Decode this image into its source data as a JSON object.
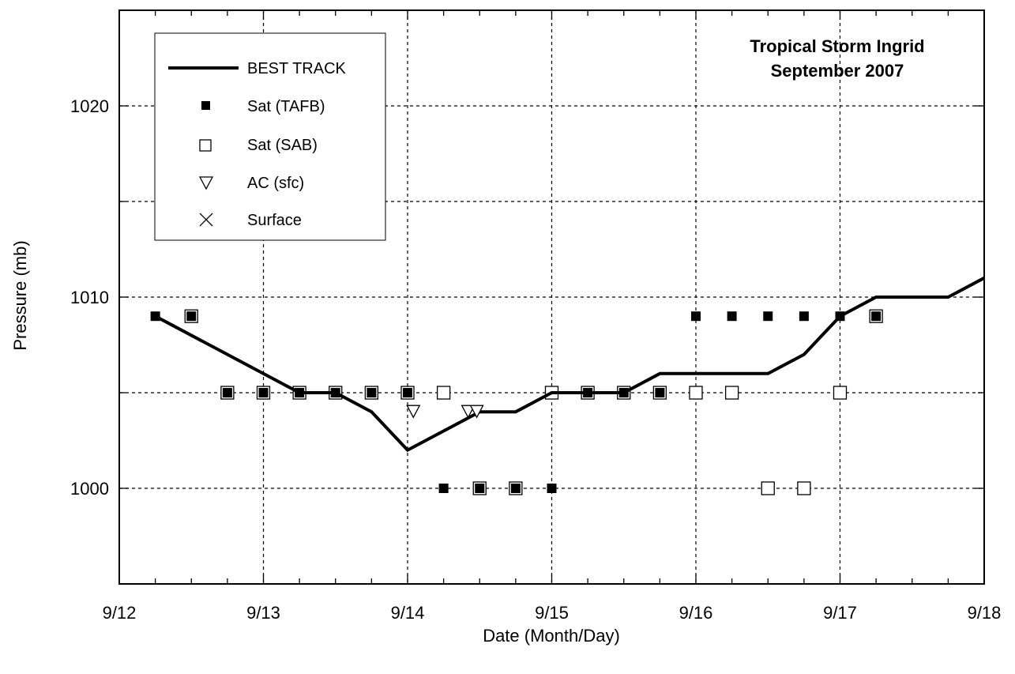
{
  "chart_data": {
    "type": "scatter",
    "title": "Tropical Storm Ingrid",
    "subtitle": "September 2007",
    "xlabel": "Date (Month/Day)",
    "ylabel": "Pressure (mb)",
    "x_ticks": [
      "9/12",
      "9/13",
      "9/14",
      "9/15",
      "9/16",
      "9/17",
      "9/18"
    ],
    "y_ticks": [
      1000,
      1010,
      1020
    ],
    "xlim": [
      12,
      18
    ],
    "ylim": [
      995,
      1025
    ],
    "grid": true,
    "legend_position": "top-left",
    "series": [
      {
        "name": "BEST TRACK",
        "marker": "line",
        "color": "#000000",
        "points": [
          [
            12.25,
            1009
          ],
          [
            13.25,
            1005
          ],
          [
            13.5,
            1005
          ],
          [
            13.75,
            1004
          ],
          [
            14.0,
            1002
          ],
          [
            14.5,
            1004
          ],
          [
            14.75,
            1004
          ],
          [
            15.0,
            1005
          ],
          [
            15.25,
            1005
          ],
          [
            15.5,
            1005
          ],
          [
            15.75,
            1006
          ],
          [
            16.0,
            1006
          ],
          [
            16.25,
            1006
          ],
          [
            16.5,
            1006
          ],
          [
            16.75,
            1007
          ],
          [
            17.0,
            1009
          ],
          [
            17.25,
            1010
          ],
          [
            17.5,
            1010
          ],
          [
            17.75,
            1010
          ],
          [
            18.0,
            1011
          ]
        ]
      },
      {
        "name": "Sat (TAFB)",
        "marker": "filled-square",
        "color": "#000000",
        "points": [
          [
            12.25,
            1009
          ],
          [
            12.5,
            1009
          ],
          [
            12.75,
            1005
          ],
          [
            13.0,
            1005
          ],
          [
            13.25,
            1005
          ],
          [
            13.5,
            1005
          ],
          [
            13.75,
            1005
          ],
          [
            14.0,
            1005
          ],
          [
            14.25,
            1000
          ],
          [
            14.5,
            1000
          ],
          [
            14.75,
            1000
          ],
          [
            15.0,
            1000
          ],
          [
            15.25,
            1005
          ],
          [
            15.5,
            1005
          ],
          [
            15.75,
            1005
          ],
          [
            16.0,
            1009
          ],
          [
            16.25,
            1009
          ],
          [
            16.5,
            1009
          ],
          [
            16.75,
            1009
          ],
          [
            17.0,
            1009
          ],
          [
            17.25,
            1009
          ]
        ]
      },
      {
        "name": "Sat (SAB)",
        "marker": "open-square",
        "color": "#000000",
        "points": [
          [
            12.5,
            1009
          ],
          [
            12.75,
            1005
          ],
          [
            13.0,
            1005
          ],
          [
            13.25,
            1005
          ],
          [
            13.5,
            1005
          ],
          [
            13.75,
            1005
          ],
          [
            14.0,
            1005
          ],
          [
            14.25,
            1005
          ],
          [
            14.5,
            1000
          ],
          [
            14.75,
            1000
          ],
          [
            15.0,
            1005
          ],
          [
            15.25,
            1005
          ],
          [
            15.5,
            1005
          ],
          [
            15.75,
            1005
          ],
          [
            16.0,
            1005
          ],
          [
            16.25,
            1005
          ],
          [
            16.5,
            1000
          ],
          [
            16.75,
            1000
          ],
          [
            17.0,
            1005
          ],
          [
            17.25,
            1009
          ]
        ]
      },
      {
        "name": "AC (sfc)",
        "marker": "open-triangle-down",
        "color": "#000000",
        "points": [
          [
            14.04,
            1004
          ],
          [
            14.42,
            1004
          ],
          [
            14.48,
            1004
          ]
        ]
      },
      {
        "name": "Surface",
        "marker": "x",
        "color": "#000000",
        "points": []
      }
    ]
  }
}
